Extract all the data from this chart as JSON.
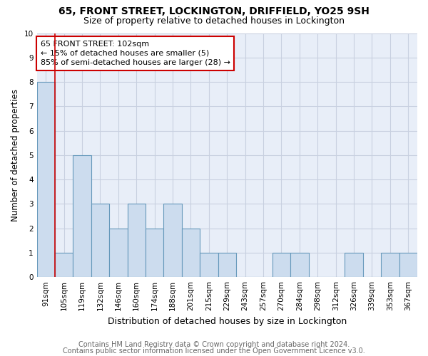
{
  "title": "65, FRONT STREET, LOCKINGTON, DRIFFIELD, YO25 9SH",
  "subtitle": "Size of property relative to detached houses in Lockington",
  "xlabel": "Distribution of detached houses by size in Lockington",
  "ylabel": "Number of detached properties",
  "categories": [
    "91sqm",
    "105sqm",
    "119sqm",
    "132sqm",
    "146sqm",
    "160sqm",
    "174sqm",
    "188sqm",
    "201sqm",
    "215sqm",
    "229sqm",
    "243sqm",
    "257sqm",
    "270sqm",
    "284sqm",
    "298sqm",
    "312sqm",
    "326sqm",
    "339sqm",
    "353sqm",
    "367sqm"
  ],
  "values": [
    8,
    1,
    5,
    3,
    2,
    3,
    2,
    3,
    2,
    1,
    1,
    0,
    0,
    1,
    1,
    0,
    0,
    1,
    0,
    1,
    1
  ],
  "bar_color": "#ccdcee",
  "bar_edge_color": "#6699bb",
  "vline_x_index": 0.5,
  "vline_color": "#cc0000",
  "annotation_line1": "65 FRONT STREET: 102sqm",
  "annotation_line2": "← 15% of detached houses are smaller (5)",
  "annotation_line3": "85% of semi-detached houses are larger (28) →",
  "annotation_box_color": "#cc0000",
  "ylim": [
    0,
    10
  ],
  "yticks": [
    0,
    1,
    2,
    3,
    4,
    5,
    6,
    7,
    8,
    9,
    10
  ],
  "grid_color": "#c8d0e0",
  "background_color": "#e8eef8",
  "footer_line1": "Contains HM Land Registry data © Crown copyright and database right 2024.",
  "footer_line2": "Contains public sector information licensed under the Open Government Licence v3.0.",
  "title_fontsize": 10,
  "subtitle_fontsize": 9,
  "xlabel_fontsize": 9,
  "ylabel_fontsize": 8.5,
  "tick_fontsize": 7.5,
  "annotation_fontsize": 8,
  "footer_fontsize": 7
}
